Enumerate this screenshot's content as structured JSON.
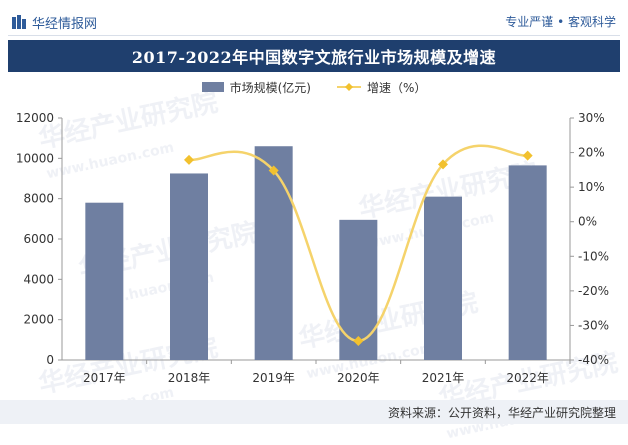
{
  "header": {
    "brand": "华经情报网",
    "tagline": "专业严谨 • 客观科学"
  },
  "watermark": {
    "text": "华经产业研究院",
    "url": "www.huaon.com"
  },
  "footer": {
    "source": "资料来源：公开资料，华经产业研究院整理"
  },
  "colors": {
    "bar": "#6f7fa1",
    "line": "#f5d36b",
    "marker": "#f2c12e",
    "title_bg": "#1f3f6e"
  },
  "chart_data": {
    "type": "bar",
    "title": "2017-2022年中国数字文旅行业市场规模及增速",
    "categories": [
      "2017年",
      "2018年",
      "2019年",
      "2020年",
      "2021年",
      "2022年"
    ],
    "series": [
      {
        "name": "市场规模(亿元)",
        "type": "bar",
        "axis": "left",
        "values": [
          7800,
          9250,
          10600,
          6950,
          8100,
          9650
        ]
      },
      {
        "name": "增速（%）",
        "type": "line",
        "axis": "right",
        "values": [
          null,
          17.9,
          14.8,
          -34.5,
          16.6,
          19.1
        ]
      }
    ],
    "y_left": {
      "min": 0,
      "max": 12000,
      "ticks": [
        "0",
        "2000",
        "4000",
        "6000",
        "8000",
        "10000",
        "12000"
      ]
    },
    "y_right": {
      "min": -40,
      "max": 30,
      "ticks": [
        "-40%",
        "-30%",
        "-20%",
        "-10%",
        "0%",
        "10%",
        "20%",
        "30%"
      ]
    },
    "legend_position": "top-center",
    "grid": false
  }
}
